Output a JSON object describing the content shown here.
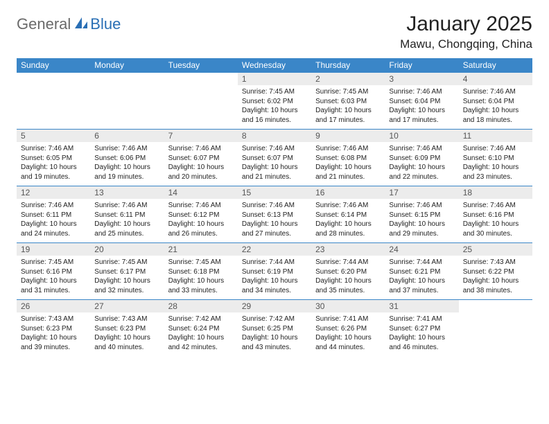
{
  "logo": {
    "general": "General",
    "blue": "Blue"
  },
  "title": "January 2025",
  "location": "Mawu, Chongqing, China",
  "colors": {
    "header_bg": "#3a86c8",
    "header_fg": "#ffffff",
    "daynum_bg": "#ececec",
    "row_border": "#3a86c8",
    "logo_gray": "#6a6a6a",
    "logo_blue": "#2a6fb5"
  },
  "weekdays": [
    "Sunday",
    "Monday",
    "Tuesday",
    "Wednesday",
    "Thursday",
    "Friday",
    "Saturday"
  ],
  "weeks": [
    [
      {
        "empty": true
      },
      {
        "empty": true
      },
      {
        "empty": true
      },
      {
        "n": "1",
        "sunrise": "7:45 AM",
        "sunset": "6:02 PM",
        "daylight": "10 hours and 16 minutes."
      },
      {
        "n": "2",
        "sunrise": "7:45 AM",
        "sunset": "6:03 PM",
        "daylight": "10 hours and 17 minutes."
      },
      {
        "n": "3",
        "sunrise": "7:46 AM",
        "sunset": "6:04 PM",
        "daylight": "10 hours and 17 minutes."
      },
      {
        "n": "4",
        "sunrise": "7:46 AM",
        "sunset": "6:04 PM",
        "daylight": "10 hours and 18 minutes."
      }
    ],
    [
      {
        "n": "5",
        "sunrise": "7:46 AM",
        "sunset": "6:05 PM",
        "daylight": "10 hours and 19 minutes."
      },
      {
        "n": "6",
        "sunrise": "7:46 AM",
        "sunset": "6:06 PM",
        "daylight": "10 hours and 19 minutes."
      },
      {
        "n": "7",
        "sunrise": "7:46 AM",
        "sunset": "6:07 PM",
        "daylight": "10 hours and 20 minutes."
      },
      {
        "n": "8",
        "sunrise": "7:46 AM",
        "sunset": "6:07 PM",
        "daylight": "10 hours and 21 minutes."
      },
      {
        "n": "9",
        "sunrise": "7:46 AM",
        "sunset": "6:08 PM",
        "daylight": "10 hours and 21 minutes."
      },
      {
        "n": "10",
        "sunrise": "7:46 AM",
        "sunset": "6:09 PM",
        "daylight": "10 hours and 22 minutes."
      },
      {
        "n": "11",
        "sunrise": "7:46 AM",
        "sunset": "6:10 PM",
        "daylight": "10 hours and 23 minutes."
      }
    ],
    [
      {
        "n": "12",
        "sunrise": "7:46 AM",
        "sunset": "6:11 PM",
        "daylight": "10 hours and 24 minutes."
      },
      {
        "n": "13",
        "sunrise": "7:46 AM",
        "sunset": "6:11 PM",
        "daylight": "10 hours and 25 minutes."
      },
      {
        "n": "14",
        "sunrise": "7:46 AM",
        "sunset": "6:12 PM",
        "daylight": "10 hours and 26 minutes."
      },
      {
        "n": "15",
        "sunrise": "7:46 AM",
        "sunset": "6:13 PM",
        "daylight": "10 hours and 27 minutes."
      },
      {
        "n": "16",
        "sunrise": "7:46 AM",
        "sunset": "6:14 PM",
        "daylight": "10 hours and 28 minutes."
      },
      {
        "n": "17",
        "sunrise": "7:46 AM",
        "sunset": "6:15 PM",
        "daylight": "10 hours and 29 minutes."
      },
      {
        "n": "18",
        "sunrise": "7:46 AM",
        "sunset": "6:16 PM",
        "daylight": "10 hours and 30 minutes."
      }
    ],
    [
      {
        "n": "19",
        "sunrise": "7:45 AM",
        "sunset": "6:16 PM",
        "daylight": "10 hours and 31 minutes."
      },
      {
        "n": "20",
        "sunrise": "7:45 AM",
        "sunset": "6:17 PM",
        "daylight": "10 hours and 32 minutes."
      },
      {
        "n": "21",
        "sunrise": "7:45 AM",
        "sunset": "6:18 PM",
        "daylight": "10 hours and 33 minutes."
      },
      {
        "n": "22",
        "sunrise": "7:44 AM",
        "sunset": "6:19 PM",
        "daylight": "10 hours and 34 minutes."
      },
      {
        "n": "23",
        "sunrise": "7:44 AM",
        "sunset": "6:20 PM",
        "daylight": "10 hours and 35 minutes."
      },
      {
        "n": "24",
        "sunrise": "7:44 AM",
        "sunset": "6:21 PM",
        "daylight": "10 hours and 37 minutes."
      },
      {
        "n": "25",
        "sunrise": "7:43 AM",
        "sunset": "6:22 PM",
        "daylight": "10 hours and 38 minutes."
      }
    ],
    [
      {
        "n": "26",
        "sunrise": "7:43 AM",
        "sunset": "6:23 PM",
        "daylight": "10 hours and 39 minutes."
      },
      {
        "n": "27",
        "sunrise": "7:43 AM",
        "sunset": "6:23 PM",
        "daylight": "10 hours and 40 minutes."
      },
      {
        "n": "28",
        "sunrise": "7:42 AM",
        "sunset": "6:24 PM",
        "daylight": "10 hours and 42 minutes."
      },
      {
        "n": "29",
        "sunrise": "7:42 AM",
        "sunset": "6:25 PM",
        "daylight": "10 hours and 43 minutes."
      },
      {
        "n": "30",
        "sunrise": "7:41 AM",
        "sunset": "6:26 PM",
        "daylight": "10 hours and 44 minutes."
      },
      {
        "n": "31",
        "sunrise": "7:41 AM",
        "sunset": "6:27 PM",
        "daylight": "10 hours and 46 minutes."
      },
      {
        "empty": true
      }
    ]
  ]
}
